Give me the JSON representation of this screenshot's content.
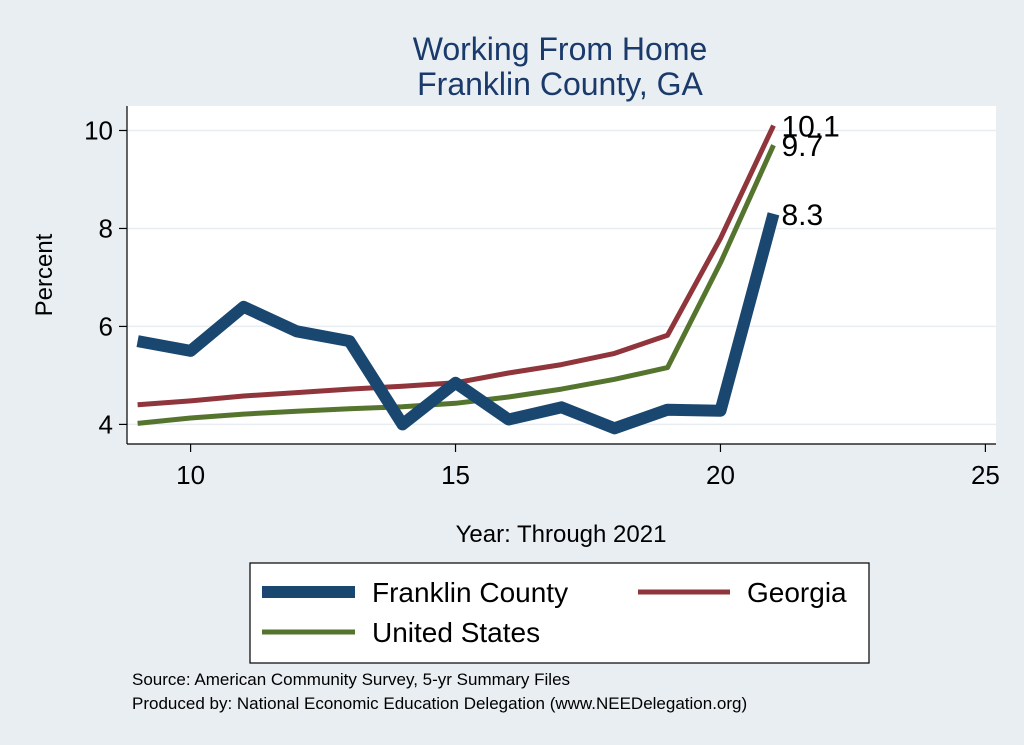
{
  "chart_data": {
    "type": "line",
    "title": [
      "Working From Home",
      "Franklin County, GA"
    ],
    "xlabel": "Year: Through 2021",
    "ylabel": "Percent",
    "xlim": [
      8.8,
      25.2
    ],
    "ylim": [
      3.6,
      10.5
    ],
    "xticks": [
      10,
      15,
      20,
      25
    ],
    "yticks": [
      4,
      6,
      8,
      10
    ],
    "grid": true,
    "legend_position": "bottom",
    "x": [
      9,
      10,
      11,
      12,
      13,
      14,
      15,
      16,
      17,
      18,
      19,
      20,
      21
    ],
    "series": [
      {
        "name": "Franklin County",
        "color": "#1a476f",
        "values": [
          5.7,
          5.5,
          6.4,
          5.9,
          5.7,
          4.0,
          4.85,
          4.1,
          4.35,
          3.92,
          4.3,
          4.28,
          8.3
        ],
        "end_label": "8.3"
      },
      {
        "name": "Georgia",
        "color": "#90353b",
        "values": [
          4.4,
          4.48,
          4.58,
          4.65,
          4.72,
          4.78,
          4.85,
          5.05,
          5.22,
          5.45,
          5.82,
          7.8,
          10.1
        ],
        "end_label": "10.1"
      },
      {
        "name": "United States",
        "color": "#55752f",
        "values": [
          4.02,
          4.13,
          4.21,
          4.27,
          4.32,
          4.36,
          4.43,
          4.56,
          4.72,
          4.92,
          5.16,
          7.3,
          9.7
        ],
        "end_label": "9.7"
      }
    ],
    "notes": [
      "Source: American Community Survey, 5-yr Summary Files",
      "Produced by: National Economic Education Delegation (www.NEEDelegation.org)"
    ]
  }
}
